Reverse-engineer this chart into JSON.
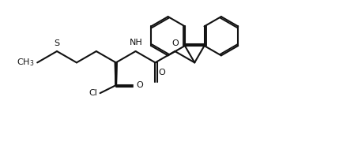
{
  "background_color": "#ffffff",
  "line_color": "#111111",
  "line_width": 1.5,
  "fig_width": 4.35,
  "fig_height": 2.08,
  "dpi": 100,
  "label_fontsize": 8.0,
  "xlim": [
    0,
    10
  ],
  "ylim": [
    0,
    5
  ]
}
